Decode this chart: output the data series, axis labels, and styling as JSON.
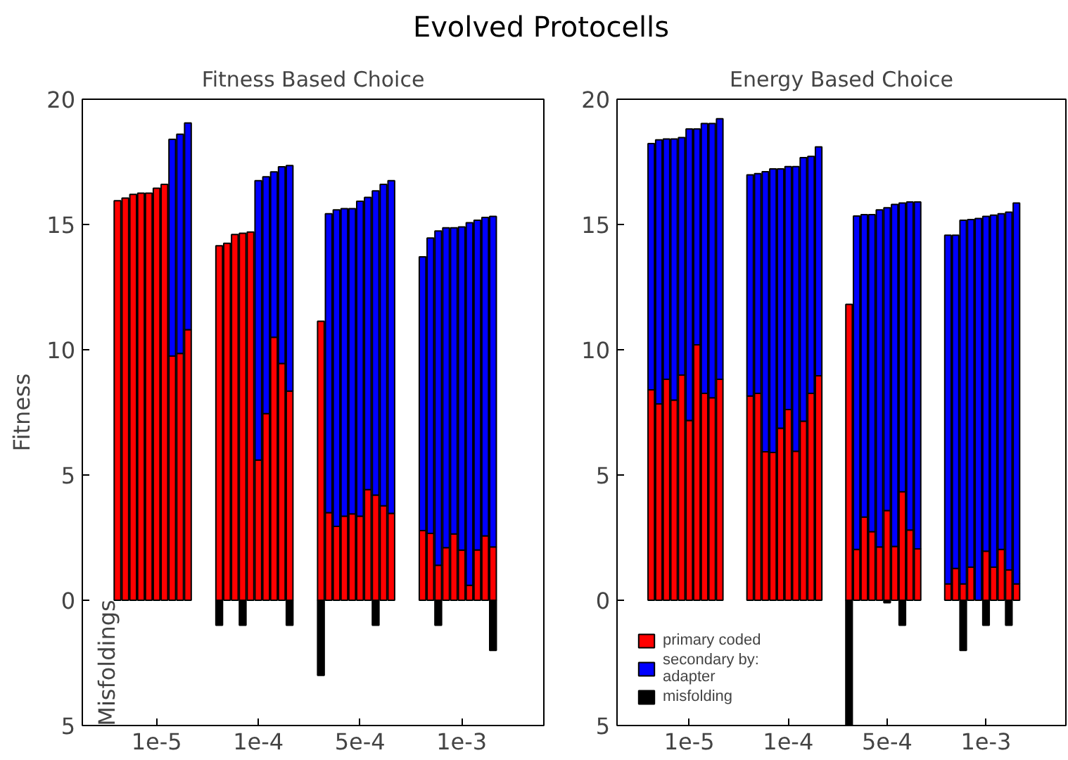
{
  "chart_data": [
    {
      "type": "bar",
      "title": "Fitness Based Choice",
      "ylabel": "Fitness",
      "stacked": true,
      "legend": false,
      "grid": false,
      "annotations": [
        "Evolved Protocells",
        "Misfoldings"
      ],
      "categories": [
        null,
        null,
        null,
        null,
        null,
        "1e-5",
        null,
        null,
        null,
        null,
        null,
        null,
        null,
        null,
        null,
        null,
        null,
        null,
        "1e-4",
        null,
        null,
        null,
        null,
        null,
        null,
        null,
        null,
        null,
        null,
        null,
        null,
        "5e-4",
        null,
        null,
        null,
        null,
        null,
        null,
        null,
        null,
        null,
        null,
        null,
        null,
        "1e-3",
        null,
        null,
        null,
        null
      ],
      "ylim": [
        -5,
        20
      ],
      "yticks": [
        {
          "value": -5,
          "label": "5"
        },
        0,
        5,
        10,
        15,
        20
      ],
      "series": [
        {
          "color": "#ff0000",
          "values": [
            15.95,
            16.05,
            16.2,
            16.25,
            16.25,
            16.45,
            16.6,
            9.75,
            9.85,
            10.8,
            null,
            null,
            null,
            14.15,
            14.25,
            14.6,
            14.65,
            14.7,
            5.6,
            7.45,
            10.5,
            9.45,
            8.35,
            null,
            null,
            null,
            11.14,
            3.5,
            2.95,
            3.36,
            3.45,
            3.36,
            4.42,
            4.2,
            3.77,
            3.47,
            null,
            null,
            null,
            2.78,
            2.67,
            1.4,
            2.1,
            2.65,
            2.0,
            0.6,
            2.01,
            2.57,
            2.13
          ]
        },
        {
          "color": "#0000ff",
          "values": [
            null,
            null,
            null,
            null,
            null,
            null,
            null,
            8.65,
            8.75,
            8.25,
            null,
            null,
            null,
            null,
            null,
            null,
            null,
            null,
            11.15,
            9.45,
            6.6,
            7.85,
            9.0,
            null,
            null,
            null,
            null,
            11.93,
            12.63,
            12.27,
            12.18,
            12.57,
            11.66,
            12.14,
            12.83,
            13.28,
            null,
            null,
            null,
            10.93,
            11.79,
            13.34,
            12.77,
            12.22,
            12.9,
            14.47,
            13.16,
            12.71,
            13.19
          ]
        },
        {
          "color": "#000000",
          "values": [
            null,
            null,
            null,
            null,
            null,
            null,
            null,
            null,
            null,
            null,
            null,
            null,
            null,
            -1,
            null,
            null,
            -1,
            null,
            null,
            null,
            null,
            null,
            -1,
            null,
            null,
            null,
            -3,
            null,
            null,
            null,
            null,
            null,
            null,
            -1,
            null,
            null,
            null,
            null,
            null,
            null,
            null,
            -1,
            null,
            null,
            null,
            null,
            null,
            null,
            -2
          ]
        }
      ]
    },
    {
      "type": "bar",
      "title": "Energy Based Choice",
      "stacked": true,
      "legend": "bottom left",
      "grid": false,
      "categories": [
        null,
        null,
        null,
        null,
        null,
        "1e-5",
        null,
        null,
        null,
        null,
        null,
        null,
        null,
        null,
        null,
        null,
        null,
        null,
        "1e-4",
        null,
        null,
        null,
        null,
        null,
        null,
        null,
        null,
        null,
        null,
        null,
        null,
        "5e-4",
        null,
        null,
        null,
        null,
        null,
        null,
        null,
        null,
        null,
        null,
        null,
        null,
        "1e-3",
        null,
        null,
        null,
        null
      ],
      "ylim": [
        -5,
        20
      ],
      "yticks": [
        {
          "value": -5,
          "label": "5"
        },
        0,
        5,
        10,
        15,
        20
      ],
      "series": [
        {
          "name": "primary coded",
          "color": "#ff0000",
          "values": [
            8.4,
            7.84,
            8.82,
            7.99,
            8.99,
            7.18,
            10.2,
            8.26,
            8.08,
            8.82,
            null,
            null,
            null,
            8.15,
            8.26,
            5.93,
            5.9,
            6.87,
            7.61,
            5.95,
            7.15,
            8.26,
            8.96,
            null,
            null,
            null,
            11.81,
            2.03,
            3.32,
            2.74,
            2.13,
            3.58,
            2.15,
            4.33,
            2.8,
            2.05,
            null,
            null,
            null,
            0.65,
            1.27,
            0.65,
            1.32,
            null,
            1.96,
            1.32,
            2.03,
            1.21,
            0.65
          ]
        },
        {
          "name": "secondary by:\nadapter",
          "color": "#0000ff",
          "values": [
            9.83,
            10.54,
            9.59,
            10.42,
            9.48,
            11.63,
            8.61,
            10.77,
            10.95,
            10.4,
            null,
            null,
            null,
            8.83,
            8.77,
            11.18,
            11.32,
            10.35,
            9.7,
            11.36,
            10.52,
            9.46,
            9.14,
            null,
            null,
            null,
            null,
            13.31,
            12.07,
            12.65,
            13.45,
            12.09,
            13.65,
            11.53,
            13.1,
            13.85,
            null,
            null,
            null,
            13.92,
            13.3,
            14.52,
            13.88,
            15.24,
            13.36,
            14.05,
            13.4,
            14.28,
            15.21
          ]
        },
        {
          "name": "misfolding",
          "color": "#000000",
          "values": [
            null,
            null,
            null,
            null,
            null,
            null,
            null,
            null,
            null,
            null,
            null,
            null,
            null,
            null,
            null,
            null,
            null,
            null,
            null,
            null,
            null,
            null,
            null,
            null,
            null,
            null,
            -5,
            null,
            null,
            null,
            null,
            -0.1,
            null,
            -1,
            null,
            null,
            null,
            null,
            null,
            null,
            null,
            -2,
            null,
            null,
            -1,
            null,
            null,
            -1,
            null
          ]
        }
      ]
    }
  ]
}
